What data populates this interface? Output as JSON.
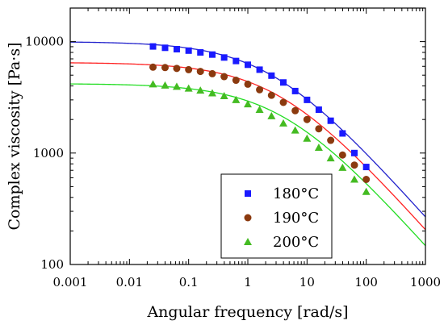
{
  "chart_data": {
    "type": "scatter",
    "xlabel": "Angular frequency [rad/s]",
    "ylabel": "Complex viscosity [Pa·s]",
    "x_scale": "log",
    "y_scale": "log",
    "xlim": [
      0.001,
      1000
    ],
    "ylim": [
      100,
      20000
    ],
    "x_ticks": [
      {
        "value": 0.001,
        "label": "0.001"
      },
      {
        "value": 0.01,
        "label": "0.01"
      },
      {
        "value": 0.1,
        "label": "0.1"
      },
      {
        "value": 1,
        "label": "1"
      },
      {
        "value": 10,
        "label": "10"
      },
      {
        "value": 100,
        "label": "100"
      },
      {
        "value": 1000,
        "label": "1000"
      }
    ],
    "y_ticks": [
      {
        "value": 100,
        "label": "100"
      },
      {
        "value": 1000,
        "label": "1000"
      },
      {
        "value": 10000,
        "label": "10000"
      }
    ],
    "grid": false,
    "legend_position": "bottom-right",
    "series": [
      {
        "name": "180°C",
        "marker": "square",
        "color": "#1a1aff",
        "line_color": "#2222cc",
        "x": [
          0.025,
          0.04,
          0.063,
          0.1,
          0.158,
          0.251,
          0.398,
          0.631,
          1.0,
          1.58,
          2.51,
          3.98,
          6.31,
          10.0,
          15.8,
          25.1,
          39.8,
          63.1,
          100
        ],
        "y": [
          9050,
          8800,
          8550,
          8300,
          8000,
          7650,
          7200,
          6700,
          6200,
          5600,
          4950,
          4300,
          3600,
          3000,
          2450,
          1950,
          1500,
          1000,
          750
        ],
        "fit": {
          "eta0": 10000,
          "tau": 0.4,
          "n": 0.6
        }
      },
      {
        "name": "190°C",
        "marker": "circle",
        "color": "#8b3a0f",
        "line_color": "#ff2222",
        "x": [
          0.025,
          0.04,
          0.063,
          0.1,
          0.158,
          0.251,
          0.398,
          0.631,
          1.0,
          1.58,
          2.51,
          3.98,
          6.31,
          10.0,
          15.8,
          25.1,
          39.8,
          63.1,
          100
        ],
        "y": [
          5900,
          5850,
          5750,
          5600,
          5400,
          5150,
          4850,
          4500,
          4150,
          3700,
          3300,
          2850,
          2400,
          2000,
          1650,
          1300,
          960,
          780,
          580
        ],
        "fit": {
          "eta0": 6500,
          "tau": 0.3,
          "n": 0.6
        }
      },
      {
        "name": "200°C",
        "marker": "triangle",
        "color": "#44bb22",
        "line_color": "#22dd22",
        "x": [
          0.025,
          0.04,
          0.063,
          0.1,
          0.158,
          0.251,
          0.398,
          0.631,
          1.0,
          1.58,
          2.51,
          3.98,
          6.31,
          10.0,
          15.8,
          25.1,
          39.8,
          63.1,
          100
        ],
        "y": [
          4150,
          4050,
          3950,
          3800,
          3650,
          3450,
          3250,
          3000,
          2750,
          2450,
          2150,
          1850,
          1600,
          1350,
          1120,
          900,
          740,
          580,
          450
        ],
        "fit": {
          "eta0": 4200,
          "tau": 0.25,
          "n": 0.6
        }
      }
    ]
  }
}
